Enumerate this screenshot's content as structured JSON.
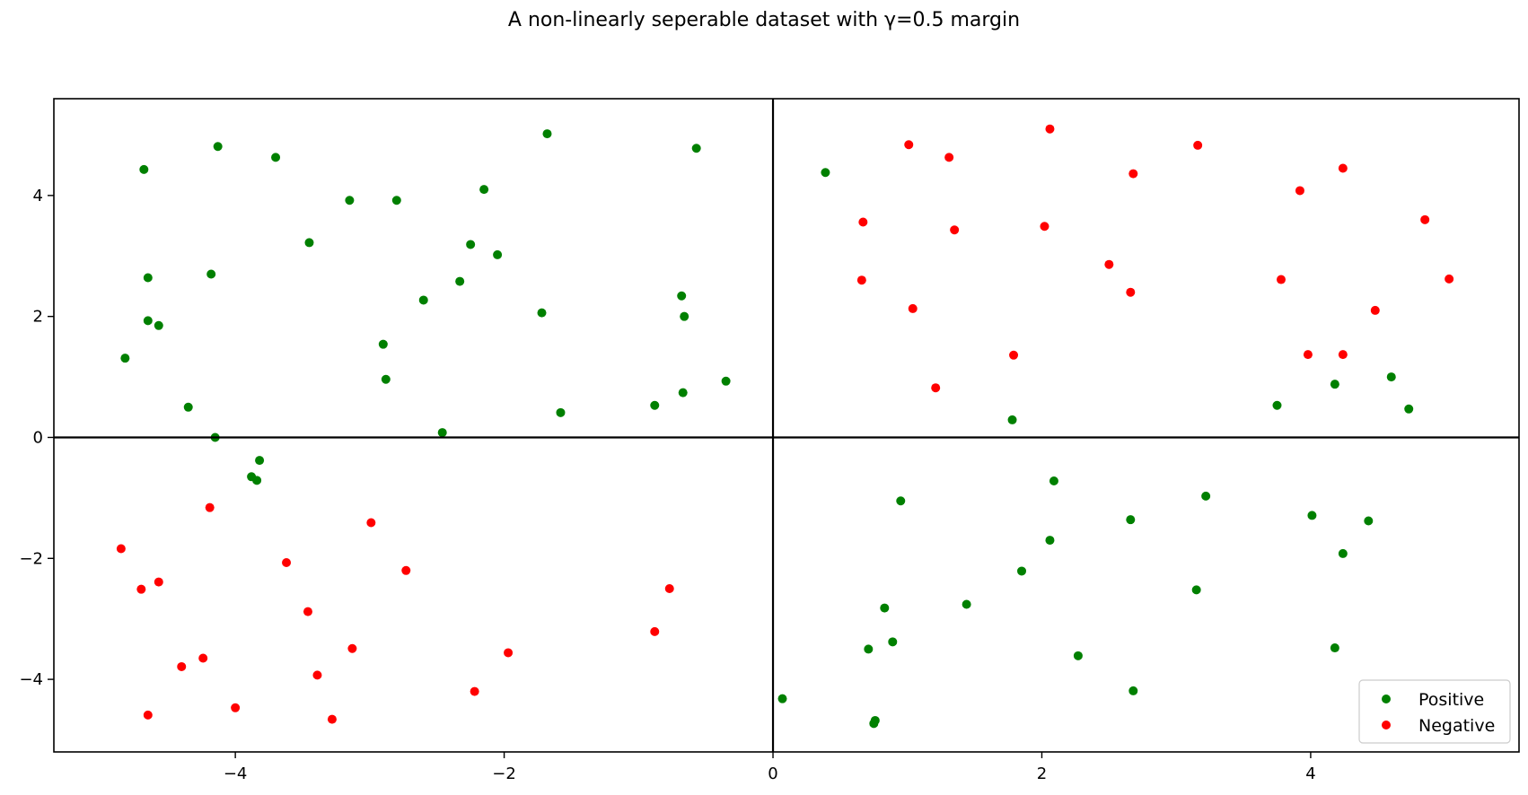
{
  "chart_data": {
    "type": "scatter",
    "title": "A non-linearly seperable dataset with γ=0.5 margin",
    "xlabel": "",
    "ylabel": "",
    "xlim": [
      -5.35,
      5.55
    ],
    "ylim": [
      -5.2,
      5.6
    ],
    "xticks": [
      -4,
      -2,
      0,
      2,
      4
    ],
    "yticks": [
      -4,
      -2,
      0,
      2,
      4
    ],
    "tick_labels_x": [
      "−4",
      "−2",
      "0",
      "2",
      "4"
    ],
    "tick_labels_y": [
      "−4",
      "−2",
      "0",
      "2",
      "4"
    ],
    "grid": false,
    "axes_lines_at_zero": true,
    "legend_placement": "bottom-right",
    "series": [
      {
        "name": "Positive",
        "color": "#008000",
        "points": [
          [
            -4.68,
            4.43
          ],
          [
            -4.13,
            4.81
          ],
          [
            -3.7,
            4.63
          ],
          [
            -3.15,
            3.92
          ],
          [
            -2.8,
            3.92
          ],
          [
            -2.15,
            4.1
          ],
          [
            -1.68,
            5.02
          ],
          [
            -0.57,
            4.78
          ],
          [
            -3.45,
            3.22
          ],
          [
            -2.25,
            3.19
          ],
          [
            -2.05,
            3.02
          ],
          [
            -4.65,
            2.64
          ],
          [
            -4.18,
            2.7
          ],
          [
            -2.6,
            2.27
          ],
          [
            -2.33,
            2.58
          ],
          [
            -1.72,
            2.06
          ],
          [
            -0.68,
            2.34
          ],
          [
            -0.66,
            2.0
          ],
          [
            -4.65,
            1.93
          ],
          [
            -4.57,
            1.85
          ],
          [
            -2.9,
            1.54
          ],
          [
            -4.82,
            1.31
          ],
          [
            -2.88,
            0.96
          ],
          [
            -0.35,
            0.93
          ],
          [
            -0.67,
            0.74
          ],
          [
            -0.88,
            0.53
          ],
          [
            -1.58,
            0.41
          ],
          [
            -4.35,
            0.5
          ],
          [
            -2.46,
            0.08
          ],
          [
            -4.15,
            0.0
          ],
          [
            -3.82,
            -0.38
          ],
          [
            -3.88,
            -0.65
          ],
          [
            -3.84,
            -0.71
          ],
          [
            0.39,
            4.38
          ],
          [
            1.78,
            0.29
          ],
          [
            3.75,
            0.53
          ],
          [
            4.18,
            0.88
          ],
          [
            4.6,
            1.0
          ],
          [
            4.73,
            0.47
          ],
          [
            2.09,
            -0.72
          ],
          [
            0.95,
            -1.05
          ],
          [
            3.22,
            -0.97
          ],
          [
            2.66,
            -1.36
          ],
          [
            2.06,
            -1.7
          ],
          [
            4.01,
            -1.29
          ],
          [
            4.43,
            -1.38
          ],
          [
            4.24,
            -1.92
          ],
          [
            1.85,
            -2.21
          ],
          [
            3.15,
            -2.52
          ],
          [
            0.83,
            -2.82
          ],
          [
            1.44,
            -2.76
          ],
          [
            0.71,
            -3.5
          ],
          [
            0.89,
            -3.38
          ],
          [
            2.27,
            -3.61
          ],
          [
            4.18,
            -3.48
          ],
          [
            2.68,
            -4.19
          ],
          [
            0.07,
            -4.32
          ],
          [
            0.76,
            -4.68
          ],
          [
            0.75,
            -4.73
          ]
        ]
      },
      {
        "name": "Negative",
        "color": "#ff0000",
        "points": [
          [
            1.01,
            4.84
          ],
          [
            1.31,
            4.63
          ],
          [
            2.06,
            5.1
          ],
          [
            3.16,
            4.83
          ],
          [
            4.24,
            4.45
          ],
          [
            2.68,
            4.36
          ],
          [
            3.92,
            4.08
          ],
          [
            0.67,
            3.56
          ],
          [
            1.35,
            3.43
          ],
          [
            2.02,
            3.49
          ],
          [
            4.85,
            3.6
          ],
          [
            0.66,
            2.6
          ],
          [
            2.5,
            2.86
          ],
          [
            2.66,
            2.4
          ],
          [
            3.78,
            2.61
          ],
          [
            5.03,
            2.62
          ],
          [
            1.04,
            2.13
          ],
          [
            4.48,
            2.1
          ],
          [
            1.79,
            1.36
          ],
          [
            3.98,
            1.37
          ],
          [
            4.24,
            1.37
          ],
          [
            1.21,
            0.82
          ],
          [
            -4.19,
            -1.16
          ],
          [
            -4.85,
            -1.84
          ],
          [
            -2.99,
            -1.41
          ],
          [
            -3.62,
            -2.07
          ],
          [
            -2.73,
            -2.2
          ],
          [
            -4.7,
            -2.51
          ],
          [
            -4.57,
            -2.39
          ],
          [
            -3.46,
            -2.88
          ],
          [
            -0.77,
            -2.5
          ],
          [
            -0.88,
            -3.21
          ],
          [
            -3.13,
            -3.49
          ],
          [
            -1.97,
            -3.56
          ],
          [
            -4.24,
            -3.65
          ],
          [
            -4.4,
            -3.79
          ],
          [
            -3.39,
            -3.93
          ],
          [
            -2.22,
            -4.2
          ],
          [
            -4.0,
            -4.47
          ],
          [
            -4.65,
            -4.59
          ],
          [
            -3.28,
            -4.66
          ]
        ]
      }
    ]
  }
}
